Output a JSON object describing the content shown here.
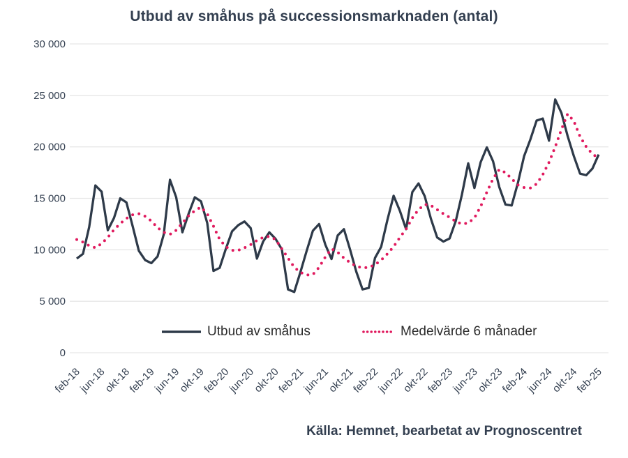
{
  "source": {
    "text": "Källa: Hemnet, bearbetat av Prognoscentret"
  },
  "legend": {
    "items": [
      {
        "label": "Utbud av småhus",
        "style": "solid",
        "color": "#2e3a49"
      },
      {
        "label": "Medelvärde 6 månader",
        "style": "dotted",
        "color": "#e01a5e"
      }
    ]
  },
  "chart_data": {
    "type": "line",
    "title": "Utbud av småhus på successionsmarknaden (antal)",
    "xlabel": "",
    "ylabel": "",
    "ylim": [
      0,
      30000
    ],
    "grid": "horizontal",
    "legend_position": "bottom-inside",
    "yticks": [
      30000,
      25000,
      20000,
      15000,
      10000,
      5000,
      0
    ],
    "ytick_labels": [
      "30 000",
      "25 000",
      "20 000",
      "15 000",
      "10 000",
      "5 000",
      "0"
    ],
    "x_tick_every": 4,
    "x_tick_labels": [
      "feb-18",
      "jun-18",
      "okt-18",
      "feb-19",
      "jun-19",
      "okt-19",
      "feb-20",
      "jun-20",
      "okt-20",
      "feb-21",
      "jun-21",
      "okt-21",
      "feb-22",
      "jun-22",
      "okt-22",
      "feb-23",
      "jun-23",
      "okt-23",
      "feb-24",
      "jun-24",
      "okt-24",
      "feb-25"
    ],
    "x_start": "feb-18",
    "x_end": "feb-25",
    "series": [
      {
        "name": "Utbud av småhus",
        "style": "solid",
        "color": "#2e3a49",
        "values": [
          9150,
          9600,
          12200,
          16250,
          15650,
          11900,
          13100,
          15000,
          14600,
          12300,
          9900,
          9000,
          8700,
          9350,
          11500,
          16800,
          15100,
          11700,
          13500,
          15100,
          14700,
          12600,
          7950,
          8250,
          10100,
          11800,
          12400,
          12750,
          12100,
          9150,
          10800,
          11700,
          11050,
          10050,
          6150,
          5900,
          7850,
          9900,
          11850,
          12500,
          10500,
          9100,
          11400,
          12000,
          10000,
          7850,
          6150,
          6300,
          9200,
          10300,
          12900,
          15250,
          13800,
          12000,
          15600,
          16450,
          15200,
          13000,
          11200,
          10800,
          11100,
          12800,
          15400,
          18400,
          16000,
          18500,
          19950,
          18600,
          16100,
          14400,
          14300,
          16500,
          19100,
          20700,
          22550,
          22750,
          20600,
          24600,
          23300,
          21050,
          19100,
          17400,
          17250,
          17900,
          19250
        ]
      },
      {
        "name": "Medelvärde 6 månader",
        "style": "dotted",
        "color": "#e01a5e",
        "values": [
          11000,
          10750,
          10400,
          10200,
          10600,
          11200,
          11950,
          12550,
          13050,
          13400,
          13500,
          13250,
          12800,
          12150,
          11700,
          11500,
          11900,
          12600,
          13300,
          13800,
          14150,
          13500,
          12300,
          11000,
          10300,
          9950,
          9950,
          10200,
          10500,
          10900,
          11200,
          11300,
          11000,
          10100,
          9200,
          8300,
          7800,
          7550,
          7600,
          8300,
          9300,
          10100,
          9760,
          9200,
          8750,
          8400,
          8250,
          8280,
          8550,
          9000,
          9600,
          10300,
          11200,
          12000,
          13100,
          13900,
          14400,
          14300,
          13900,
          13500,
          13150,
          12750,
          12500,
          12600,
          13100,
          14200,
          15600,
          16900,
          17800,
          17500,
          16900,
          16300,
          16050,
          16000,
          16400,
          17300,
          18500,
          20000,
          21700,
          23200,
          22500,
          21000,
          20000,
          19300,
          18900
        ]
      }
    ]
  }
}
